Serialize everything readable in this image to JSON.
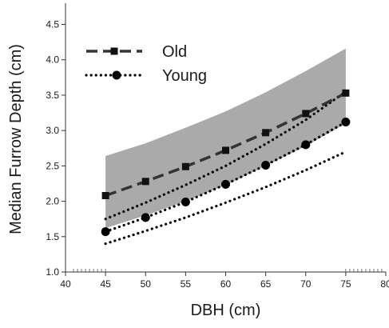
{
  "chart_data": {
    "type": "line",
    "xlabel": "DBH (cm)",
    "ylabel": "Median Furrow Depth (cm)",
    "xlim": [
      40,
      80
    ],
    "ylim": [
      1.0,
      4.8
    ],
    "x_ticks": [
      40,
      45,
      50,
      55,
      60,
      65,
      70,
      75,
      80
    ],
    "y_ticks": [
      1.0,
      1.5,
      2.0,
      2.5,
      3.0,
      3.5,
      4.0,
      4.5
    ],
    "x_tick_labels": [
      "40",
      "45",
      "50",
      "55",
      "60",
      "65",
      "70",
      "75",
      "80"
    ],
    "y_tick_labels": [
      "1.0",
      "1.5",
      "2.0",
      "2.5",
      "3.0",
      "3.5",
      "4.0",
      "4.5"
    ],
    "grid": false,
    "legend_position": "top-left",
    "x": [
      45,
      50,
      55,
      60,
      65,
      70,
      75
    ],
    "series": [
      {
        "name": "Old",
        "style": "dashed",
        "marker": "square",
        "color": "#333333",
        "values": [
          2.08,
          2.28,
          2.49,
          2.72,
          2.97,
          3.24,
          3.53
        ],
        "band": {
          "color": "#aaaaaa",
          "lower": [
            1.62,
            1.8,
            2.0,
            2.23,
            2.5,
            2.78,
            3.1
          ],
          "upper": [
            2.64,
            2.82,
            3.04,
            3.27,
            3.54,
            3.84,
            4.16
          ]
        }
      },
      {
        "name": "Young",
        "style": "dotted",
        "marker": "circle",
        "color": "#000000",
        "values": [
          1.57,
          1.77,
          1.99,
          2.24,
          2.51,
          2.8,
          3.12
        ],
        "bounds": {
          "lower": [
            1.4,
            1.58,
            1.77,
            1.98,
            2.2,
            2.44,
            2.7
          ],
          "upper": [
            1.75,
            1.98,
            2.23,
            2.5,
            2.81,
            3.15,
            3.55
          ]
        }
      }
    ]
  }
}
